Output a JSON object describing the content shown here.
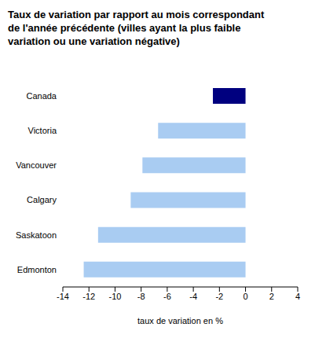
{
  "chart_data": {
    "type": "bar",
    "title": "Taux de variation par rapport au mois correspondant de l'année précédente (villes ayant la plus faible variation ou une variation négative)",
    "orientation": "horizontal",
    "categories": [
      "Canada",
      "Victoria",
      "Vancouver",
      "Calgary",
      "Saskatoon",
      "Edmonton"
    ],
    "values": [
      -2.5,
      -6.7,
      -7.9,
      -8.8,
      -11.3,
      -12.4
    ],
    "colors": [
      "#00007f",
      "#a9ccf2",
      "#a9ccf2",
      "#a9ccf2",
      "#a9ccf2",
      "#a9ccf2"
    ],
    "xlabel": "taux de variation en %",
    "xlim": [
      -14,
      4
    ],
    "xticks": [
      -14,
      -12,
      -10,
      -8,
      -6,
      -4,
      -2,
      0,
      2,
      4
    ],
    "grid": false
  }
}
